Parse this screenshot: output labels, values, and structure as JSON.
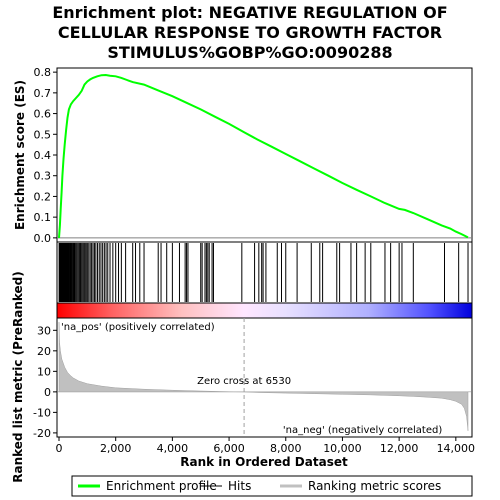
{
  "chart_data": {
    "type": "line",
    "title_lines": [
      "Enrichment plot: NEGATIVE REGULATION OF",
      "CELLULAR RESPONSE TO GROWTH FACTOR",
      "STIMULUS%GOBP%GO:0090288"
    ],
    "es_ylabel": "Enrichment score (ES)",
    "rank_ylabel_lines": [
      "Ranked list metric (PreRanked)"
    ],
    "xlabel": "Rank in Ordered Dataset",
    "x_range": [
      0,
      14500
    ],
    "x_ticks": [
      0,
      2000,
      4000,
      6000,
      8000,
      10000,
      12000,
      14000
    ],
    "x_tick_labels": [
      "0",
      "2,000",
      "4,000",
      "6,000",
      "8,000",
      "10,000",
      "12,000",
      "14,000"
    ],
    "es_range": [
      -0.02,
      0.82
    ],
    "es_ticks": [
      0.0,
      0.1,
      0.2,
      0.3,
      0.4,
      0.5,
      0.6,
      0.7,
      0.8
    ],
    "es_tick_labels": [
      "0.0",
      "0.1",
      "0.2",
      "0.3",
      "0.4",
      "0.5",
      "0.6",
      "0.7",
      "0.8"
    ],
    "metric_range": [
      -22,
      36
    ],
    "metric_ticks": [
      -20,
      -10,
      0,
      10,
      20,
      30
    ],
    "metric_tick_labels": [
      "-20",
      "-10",
      "0",
      "10",
      "20",
      "30"
    ],
    "enrichment_profile": {
      "name": "Enrichment profile",
      "color": "#00ff00",
      "x": [
        0,
        30,
        60,
        90,
        120,
        160,
        200,
        250,
        300,
        350,
        420,
        500,
        600,
        700,
        800,
        900,
        1000,
        1100,
        1200,
        1350,
        1500,
        1650,
        1800,
        2000,
        2200,
        2400,
        2600,
        3000,
        3500,
        4000,
        4500,
        5000,
        5500,
        6000,
        6530,
        7000,
        7500,
        8000,
        8500,
        9000,
        9500,
        10000,
        10500,
        11000,
        11500,
        12000,
        12200,
        12500,
        13000,
        13500,
        13800,
        14000,
        14200,
        14430
      ],
      "y": [
        0.0,
        0.06,
        0.14,
        0.22,
        0.3,
        0.38,
        0.45,
        0.52,
        0.58,
        0.62,
        0.645,
        0.66,
        0.675,
        0.69,
        0.71,
        0.74,
        0.755,
        0.765,
        0.772,
        0.78,
        0.785,
        0.786,
        0.783,
        0.78,
        0.772,
        0.762,
        0.752,
        0.74,
        0.712,
        0.684,
        0.652,
        0.62,
        0.585,
        0.55,
        0.51,
        0.475,
        0.44,
        0.405,
        0.37,
        0.335,
        0.3,
        0.265,
        0.232,
        0.2,
        0.168,
        0.14,
        0.135,
        0.12,
        0.09,
        0.06,
        0.045,
        0.03,
        0.018,
        0.002
      ]
    },
    "hits": {
      "name": "Hits",
      "color": "#000000",
      "x": [
        5,
        15,
        25,
        40,
        55,
        70,
        85,
        100,
        115,
        130,
        145,
        160,
        175,
        190,
        205,
        220,
        240,
        260,
        280,
        300,
        320,
        340,
        365,
        390,
        415,
        440,
        470,
        500,
        530,
        560,
        600,
        640,
        680,
        720,
        760,
        800,
        840,
        880,
        920,
        960,
        1000,
        1050,
        1100,
        1150,
        1200,
        1250,
        1300,
        1360,
        1420,
        1480,
        1540,
        1600,
        1660,
        1720,
        1800,
        1900,
        2000,
        2100,
        2200,
        2350,
        2600,
        2700,
        2850,
        3000,
        3500,
        3600,
        3800,
        4000,
        4250,
        4450,
        4500,
        4550,
        5000,
        5050,
        5150,
        5200,
        5250,
        5300,
        5400,
        5450,
        6450,
        6900,
        7050,
        7150,
        7200,
        7300,
        7700,
        7850,
        8000,
        8400,
        8900,
        9200,
        9300,
        9800,
        9900,
        10300,
        10500,
        10800,
        11000,
        11500,
        11700,
        12000,
        12100,
        12500,
        13600,
        14100,
        14430
      ]
    },
    "ranked_metric": {
      "name": "Ranking metric scores",
      "color": "#c0c0c0",
      "x": [
        0,
        20,
        50,
        100,
        200,
        300,
        400,
        500,
        700,
        1000,
        1500,
        2000,
        3000,
        4000,
        5000,
        6000,
        6530,
        7000,
        8000,
        9000,
        10000,
        11000,
        12000,
        12500,
        13000,
        13500,
        13800,
        14000,
        14200,
        14300,
        14380,
        14430
      ],
      "y": [
        34,
        24,
        20,
        16,
        12,
        9.5,
        8,
        6.8,
        5.3,
        4.0,
        2.8,
        2.0,
        1.3,
        0.8,
        0.4,
        0.1,
        0.0,
        -0.3,
        -0.6,
        -0.9,
        -1.2,
        -1.5,
        -1.9,
        -2.2,
        -2.6,
        -3.1,
        -3.8,
        -4.6,
        -6.0,
        -8.0,
        -12.0,
        -19.0
      ]
    },
    "zero_cross_label": "Zero cross at 6530",
    "zero_cross_x": 6530,
    "pos_label": "'na_pos' (positively correlated)",
    "neg_label": "'na_neg' (negatively correlated)",
    "pos_label_color": "#ff0000",
    "neg_label_color": "#0000ff",
    "legend": [
      {
        "label": "Enrichment profile",
        "color": "#00ff00"
      },
      {
        "label": "Hits",
        "color": "#000000"
      },
      {
        "label": "Ranking metric scores",
        "color": "#c0c0c0"
      }
    ]
  }
}
